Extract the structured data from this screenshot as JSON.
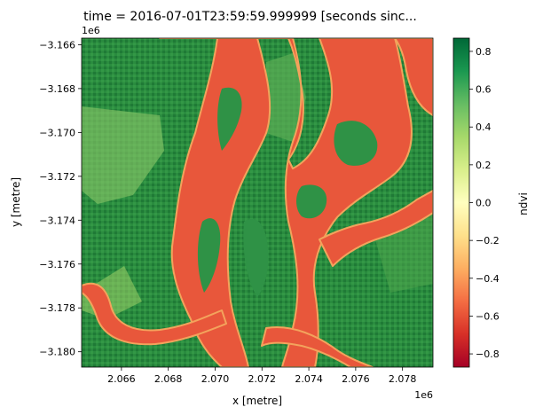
{
  "chart_data": {
    "type": "heatmap",
    "title": "time = 2016-07-01T23:59:59.999999 [seconds sinc...",
    "xlabel": "x [metre]",
    "ylabel": "y [metre]",
    "x_offset_label": "1e6",
    "y_offset_label": "1e6",
    "xlim": [
      2.0643,
      2.0793
    ],
    "ylim": [
      -3.1807,
      -3.1657
    ],
    "x_ticks": [
      2.066,
      2.068,
      2.07,
      2.072,
      2.074,
      2.076,
      2.078
    ],
    "x_tick_labels": [
      "2.066",
      "2.068",
      "2.070",
      "2.072",
      "2.074",
      "2.076",
      "2.078"
    ],
    "y_ticks": [
      -3.166,
      -3.168,
      -3.17,
      -3.172,
      -3.174,
      -3.176,
      -3.178,
      -3.18
    ],
    "y_tick_labels": [
      "−3.166",
      "−3.168",
      "−3.170",
      "−3.172",
      "−3.174",
      "−3.176",
      "−3.178",
      "−3.180"
    ],
    "colorbar": {
      "label": "ndvi",
      "range": [
        -0.87,
        0.87
      ],
      "colormap": "RdYlGn",
      "ticks": [
        -0.8,
        -0.6,
        -0.4,
        -0.2,
        0.0,
        0.2,
        0.4,
        0.6,
        0.8
      ],
      "tick_labels": [
        "−0.8",
        "−0.6",
        "−0.4",
        "−0.2",
        "0.0",
        "0.2",
        "0.4",
        "0.6",
        "0.8"
      ]
    },
    "colormap_stops": [
      "#a50026",
      "#d73027",
      "#f46d43",
      "#fdae61",
      "#fee08b",
      "#ffffbf",
      "#d9ef8b",
      "#a6d96a",
      "#66bd63",
      "#1a9850",
      "#006837"
    ],
    "grid": false
  }
}
